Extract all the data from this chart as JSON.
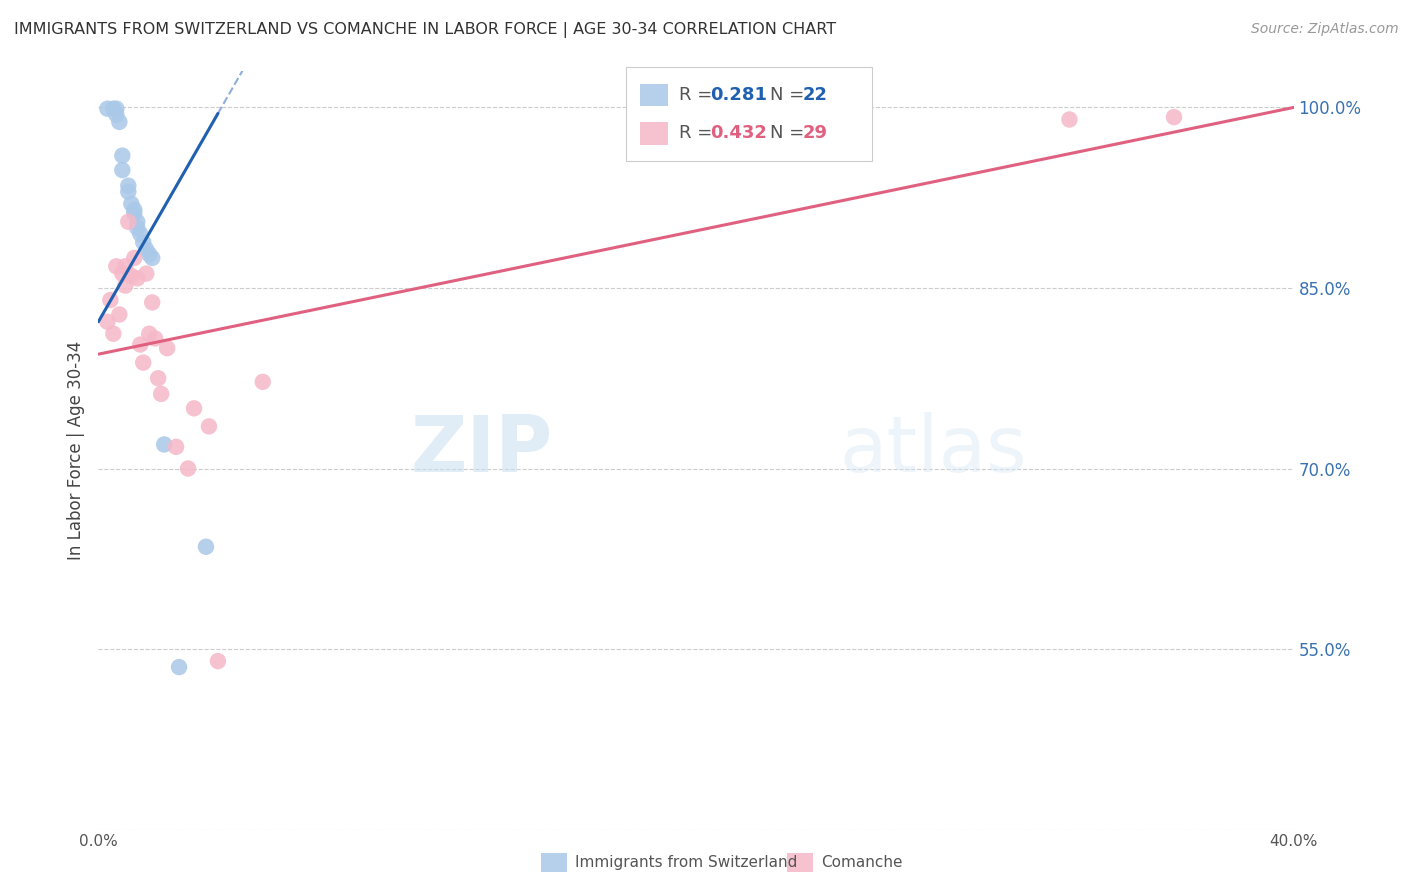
{
  "title": "IMMIGRANTS FROM SWITZERLAND VS COMANCHE IN LABOR FORCE | AGE 30-34 CORRELATION CHART",
  "source": "Source: ZipAtlas.com",
  "ylabel": "In Labor Force | Age 30-34",
  "x_min": 0.0,
  "x_max": 0.4,
  "y_min": 0.4,
  "y_max": 1.03,
  "x_ticks": [
    0.0,
    0.05,
    0.1,
    0.15,
    0.2,
    0.25,
    0.3,
    0.35,
    0.4
  ],
  "y_ticks": [
    0.4,
    0.55,
    0.7,
    0.85,
    1.0
  ],
  "y_tick_labels": [
    "",
    "55.0%",
    "70.0%",
    "85.0%",
    "100.0%"
  ],
  "grid_color": "#cccccc",
  "legend_r_blue": "0.281",
  "legend_n_blue": "22",
  "legend_r_pink": "0.432",
  "legend_n_pink": "29",
  "legend_label_blue": "Immigrants from Switzerland",
  "legend_label_pink": "Comanche",
  "blue_color": "#aac8e8",
  "pink_color": "#f5b8c8",
  "blue_line_color": "#2060b0",
  "pink_line_color": "#e06080",
  "watermark_zip": "ZIP",
  "watermark_atlas": "atlas",
  "blue_dots": [
    [
      0.003,
      0.999
    ],
    [
      0.005,
      0.999
    ],
    [
      0.006,
      0.999
    ],
    [
      0.006,
      0.994
    ],
    [
      0.007,
      0.988
    ],
    [
      0.008,
      0.96
    ],
    [
      0.008,
      0.948
    ],
    [
      0.01,
      0.935
    ],
    [
      0.01,
      0.93
    ],
    [
      0.011,
      0.92
    ],
    [
      0.012,
      0.915
    ],
    [
      0.012,
      0.912
    ],
    [
      0.013,
      0.905
    ],
    [
      0.013,
      0.9
    ],
    [
      0.014,
      0.895
    ],
    [
      0.015,
      0.888
    ],
    [
      0.016,
      0.882
    ],
    [
      0.017,
      0.878
    ],
    [
      0.018,
      0.875
    ],
    [
      0.022,
      0.72
    ],
    [
      0.027,
      0.535
    ],
    [
      0.036,
      0.635
    ]
  ],
  "pink_dots": [
    [
      0.003,
      0.822
    ],
    [
      0.004,
      0.84
    ],
    [
      0.005,
      0.812
    ],
    [
      0.006,
      0.868
    ],
    [
      0.007,
      0.828
    ],
    [
      0.008,
      0.862
    ],
    [
      0.009,
      0.868
    ],
    [
      0.009,
      0.852
    ],
    [
      0.01,
      0.905
    ],
    [
      0.011,
      0.86
    ],
    [
      0.012,
      0.875
    ],
    [
      0.013,
      0.858
    ],
    [
      0.014,
      0.803
    ],
    [
      0.015,
      0.788
    ],
    [
      0.016,
      0.862
    ],
    [
      0.017,
      0.812
    ],
    [
      0.018,
      0.838
    ],
    [
      0.019,
      0.808
    ],
    [
      0.02,
      0.775
    ],
    [
      0.021,
      0.762
    ],
    [
      0.023,
      0.8
    ],
    [
      0.026,
      0.718
    ],
    [
      0.03,
      0.7
    ],
    [
      0.032,
      0.75
    ],
    [
      0.037,
      0.735
    ],
    [
      0.04,
      0.54
    ],
    [
      0.055,
      0.772
    ],
    [
      0.325,
      0.99
    ],
    [
      0.36,
      0.992
    ]
  ],
  "blue_line_x": [
    0.0,
    0.04
  ],
  "blue_line_y": [
    0.822,
    0.995
  ],
  "pink_line_x": [
    0.0,
    0.4
  ],
  "pink_line_y": [
    0.795,
    1.0
  ]
}
